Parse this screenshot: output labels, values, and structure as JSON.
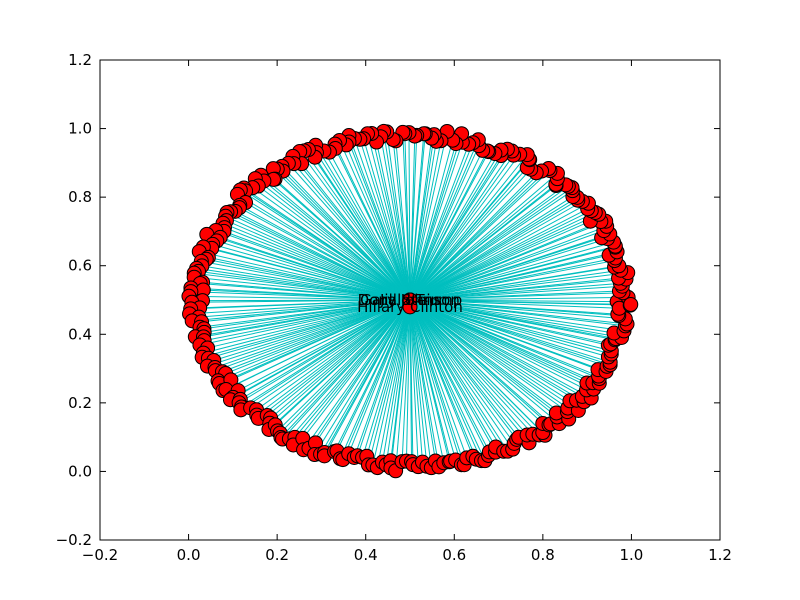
{
  "chart_data": {
    "type": "scatter",
    "description": "network graph, star layout",
    "xlim": [
      -0.2,
      1.2
    ],
    "ylim": [
      -0.2,
      1.2
    ],
    "x_ticks": [
      -0.2,
      0.0,
      0.2,
      0.4,
      0.6,
      0.8,
      1.0,
      1.2
    ],
    "y_ticks": [
      -0.2,
      0.0,
      0.2,
      0.4,
      0.6,
      0.8,
      1.0,
      1.2
    ],
    "x_tick_labels": [
      "−0.2",
      "0.0",
      "0.2",
      "0.4",
      "0.6",
      "0.8",
      "1.0",
      "1.2"
    ],
    "y_tick_labels": [
      "−0.2",
      "0.0",
      "0.2",
      "0.4",
      "0.6",
      "0.8",
      "1.0",
      "1.2"
    ],
    "grid": false,
    "edge_color": "#00bfbf",
    "node_color": "#ff0000",
    "node_edge_color": "#000000",
    "center_nodes": [
      {
        "label": "Donald Trump",
        "x": 0.5,
        "y": 0.5
      },
      {
        "label": "Gary Johnson",
        "x": 0.5,
        "y": 0.5
      },
      {
        "label": "Jill Stein",
        "x": 0.5,
        "y": 0.5
      },
      {
        "label": "Hillary Clinton",
        "x": 0.5,
        "y": 0.48
      }
    ],
    "outer_node_count": 320,
    "outer_ring": {
      "center": [
        0.5,
        0.5
      ],
      "radius": 0.5
    }
  }
}
